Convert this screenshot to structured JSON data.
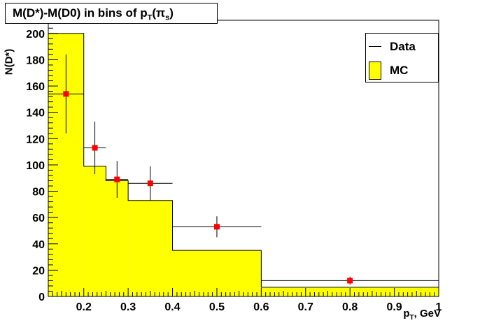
{
  "title": {
    "main": "M(D*)-M(D0) in bins of p",
    "sub": "T",
    "paren_open": "(",
    "pi": "π",
    "pi_sub": "s",
    "paren_close": ")"
  },
  "axis_labels": {
    "y": "N(D*)",
    "x_main": "p",
    "x_sub": "T",
    "x_unit": ", GeV"
  },
  "legend": {
    "data_label": "Data",
    "mc_label": "MC"
  },
  "colors": {
    "mc_fill": "#ffff00",
    "marker": "#ff0000",
    "axis": "#000000"
  },
  "chart_data": {
    "type": "histogram",
    "xlim": [
      0.12,
      1.0
    ],
    "ylim": [
      0,
      210
    ],
    "x_ticks": [
      "0.2",
      "0.3",
      "0.4",
      "0.5",
      "0.6",
      "0.7",
      "0.8",
      "0.9",
      "1"
    ],
    "x_tick_values": [
      0.2,
      0.3,
      0.4,
      0.5,
      0.6,
      0.7,
      0.8,
      0.9,
      1.0
    ],
    "y_ticks": [
      "0",
      "20",
      "40",
      "60",
      "80",
      "100",
      "120",
      "140",
      "160",
      "180",
      "200"
    ],
    "y_tick_values": [
      0,
      20,
      40,
      60,
      80,
      100,
      120,
      140,
      160,
      180,
      200
    ],
    "bin_edges": [
      0.12,
      0.2,
      0.25,
      0.3,
      0.4,
      0.6,
      1.0
    ],
    "series": [
      {
        "name": "MC",
        "style": "filled-histogram",
        "values": [
          200,
          99,
          88,
          73,
          35,
          7
        ]
      },
      {
        "name": "Data",
        "style": "points-with-errors",
        "x": [
          0.16,
          0.225,
          0.275,
          0.35,
          0.5,
          0.8
        ],
        "values": [
          154,
          113,
          89,
          86,
          53,
          12
        ],
        "y_err": [
          30,
          20,
          14,
          13,
          8,
          3
        ],
        "x_low": [
          0.12,
          0.2,
          0.25,
          0.3,
          0.4,
          0.6
        ],
        "x_high": [
          0.2,
          0.25,
          0.3,
          0.4,
          0.6,
          1.0
        ]
      }
    ],
    "grid": false,
    "legend_position": "top-right"
  }
}
